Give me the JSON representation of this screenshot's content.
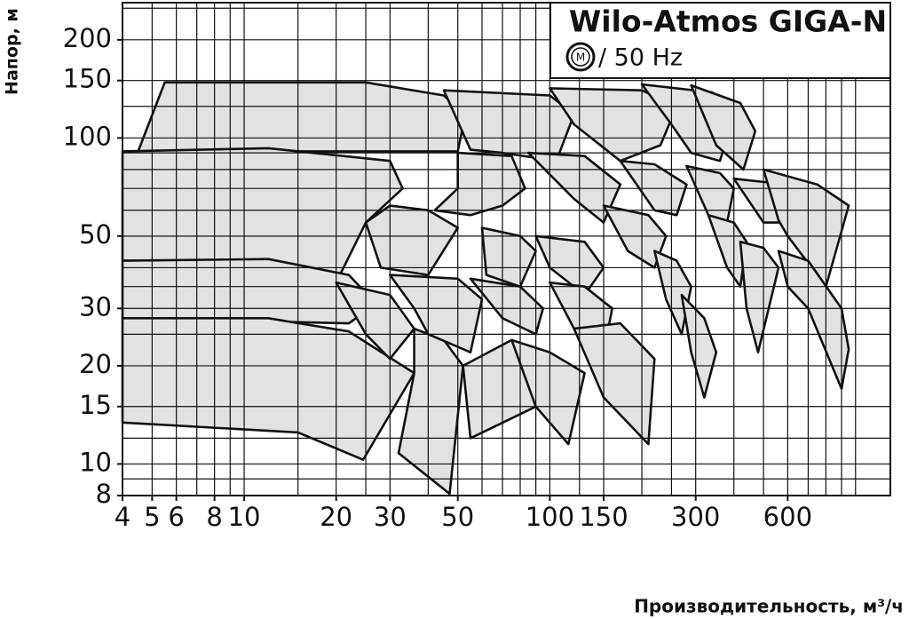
{
  "chart_data": {
    "type": "region",
    "title": "Wilo-Atmos GIGA-N",
    "motor_symbol": "M",
    "subtitle": "/ 50 Hz",
    "y_label": "Напор, м",
    "x_label": "Производительность, м³/ч",
    "x_log": true,
    "y_log": true,
    "grid": true,
    "xlim": [
      4,
      1300
    ],
    "ylim": [
      8,
      260
    ],
    "xticks": [
      4,
      5,
      6,
      8,
      10,
      20,
      30,
      50,
      100,
      150,
      300,
      600
    ],
    "yticks": [
      8,
      10,
      15,
      20,
      30,
      50,
      100,
      150,
      200
    ],
    "x_grid": [
      5,
      6,
      7,
      8,
      9,
      10,
      15,
      20,
      25,
      30,
      40,
      50,
      60,
      70,
      80,
      90,
      100,
      125,
      150,
      200,
      250,
      300,
      400,
      500,
      600,
      700,
      800,
      900,
      1000
    ],
    "y_grid": [
      9,
      10,
      12,
      15,
      20,
      25,
      30,
      35,
      40,
      50,
      60,
      70,
      80,
      90,
      100,
      125,
      150,
      200,
      250
    ],
    "color": "#e2e2e2",
    "regions": [
      {
        "x": [
          4.5,
          5.5,
          25,
          45,
          53,
          50,
          30
        ],
        "y": [
          91,
          148,
          148,
          135,
          118,
          91,
          91
        ]
      },
      {
        "x": [
          45,
          100,
          120,
          105,
          70,
          55
        ],
        "y": [
          140,
          135,
          118,
          85,
          90,
          92
        ]
      },
      {
        "x": [
          100,
          200,
          260,
          230,
          170,
          120
        ],
        "y": [
          142,
          140,
          125,
          95,
          85,
          110
        ]
      },
      {
        "x": [
          200,
          340,
          400,
          360,
          290,
          250
        ],
        "y": [
          146,
          138,
          115,
          85,
          90,
          110
        ]
      },
      {
        "x": [
          290,
          420,
          470,
          430,
          350
        ],
        "y": [
          145,
          128,
          105,
          80,
          95
        ]
      },
      {
        "x": [
          4,
          12,
          30,
          33,
          25,
          20,
          10,
          4
        ],
        "y": [
          91,
          93,
          85,
          70,
          55,
          36,
          42,
          42
        ]
      },
      {
        "x": [
          30,
          40,
          50,
          40,
          28,
          25
        ],
        "y": [
          62,
          60,
          53,
          38,
          40,
          55
        ]
      },
      {
        "x": [
          4,
          12,
          22,
          27,
          22,
          4
        ],
        "y": [
          42,
          42.5,
          38,
          31,
          27,
          28
        ]
      },
      {
        "x": [
          4,
          12,
          22,
          36,
          24.5,
          15,
          4
        ],
        "y": [
          28,
          28,
          25.5,
          19,
          10.3,
          12.5,
          13.4
        ]
      },
      {
        "x": [
          20,
          30,
          36,
          30,
          25
        ],
        "y": [
          36,
          33,
          26,
          21,
          25
        ]
      },
      {
        "x": [
          36,
          45,
          52,
          47,
          32,
          36
        ],
        "y": [
          26,
          24,
          20,
          8.1,
          10.8,
          19
        ]
      },
      {
        "x": [
          30,
          50,
          60,
          55,
          40,
          36
        ],
        "y": [
          38,
          37,
          32,
          22,
          25,
          30
        ]
      },
      {
        "x": [
          50,
          75,
          83,
          70,
          55,
          42,
          50
        ],
        "y": [
          90,
          88,
          70,
          62,
          58,
          60,
          70
        ]
      },
      {
        "x": [
          60,
          80,
          90,
          80,
          62
        ],
        "y": [
          53,
          50,
          45,
          35,
          38
        ]
      },
      {
        "x": [
          55,
          80,
          95,
          90,
          70
        ],
        "y": [
          37,
          35,
          30,
          25,
          28
        ]
      },
      {
        "x": [
          52,
          75,
          95,
          90,
          55
        ],
        "y": [
          20,
          24,
          19,
          15,
          12
        ]
      },
      {
        "x": [
          75,
          100,
          130,
          115,
          90
        ],
        "y": [
          24,
          22,
          19,
          11.5,
          15
        ]
      },
      {
        "x": [
          85,
          130,
          170,
          150,
          120
        ],
        "y": [
          90,
          88,
          72,
          55,
          65
        ]
      },
      {
        "x": [
          90,
          130,
          150,
          130,
          100
        ],
        "y": [
          50,
          48,
          40,
          33,
          40
        ]
      },
      {
        "x": [
          100,
          130,
          160,
          150,
          120
        ],
        "y": [
          36,
          35,
          30,
          22,
          26
        ]
      },
      {
        "x": [
          120,
          170,
          220,
          210,
          150
        ],
        "y": [
          26,
          27,
          21,
          11.5,
          16
        ]
      },
      {
        "x": [
          150,
          210,
          240,
          220,
          180
        ],
        "y": [
          62,
          58,
          50,
          40,
          45
        ]
      },
      {
        "x": [
          170,
          220,
          280,
          260,
          220
        ],
        "y": [
          85,
          83,
          72,
          58,
          60
        ]
      },
      {
        "x": [
          220,
          260,
          290,
          270,
          240
        ],
        "y": [
          45,
          42,
          35,
          25,
          32
        ]
      },
      {
        "x": [
          270,
          320,
          350,
          320,
          290
        ],
        "y": [
          33,
          28,
          22,
          16,
          22
        ]
      },
      {
        "x": [
          280,
          360,
          400,
          380,
          330
        ],
        "y": [
          82,
          78,
          70,
          55,
          58
        ]
      },
      {
        "x": [
          330,
          400,
          440,
          420,
          380
        ],
        "y": [
          58,
          55,
          48,
          35,
          40
        ]
      },
      {
        "x": [
          400,
          520,
          600,
          580,
          500
        ],
        "y": [
          75,
          73,
          70,
          55,
          55
        ]
      },
      {
        "x": [
          420,
          500,
          560,
          480,
          440
        ],
        "y": [
          48,
          46,
          40,
          22,
          30
        ]
      },
      {
        "x": [
          500,
          750,
          950,
          800,
          600,
          560
        ],
        "y": [
          80,
          72,
          62,
          35,
          50,
          56
        ]
      },
      {
        "x": [
          560,
          700,
          900,
          950,
          900,
          700,
          600
        ],
        "y": [
          45,
          42,
          30,
          22.5,
          17,
          30,
          35
        ]
      }
    ]
  }
}
